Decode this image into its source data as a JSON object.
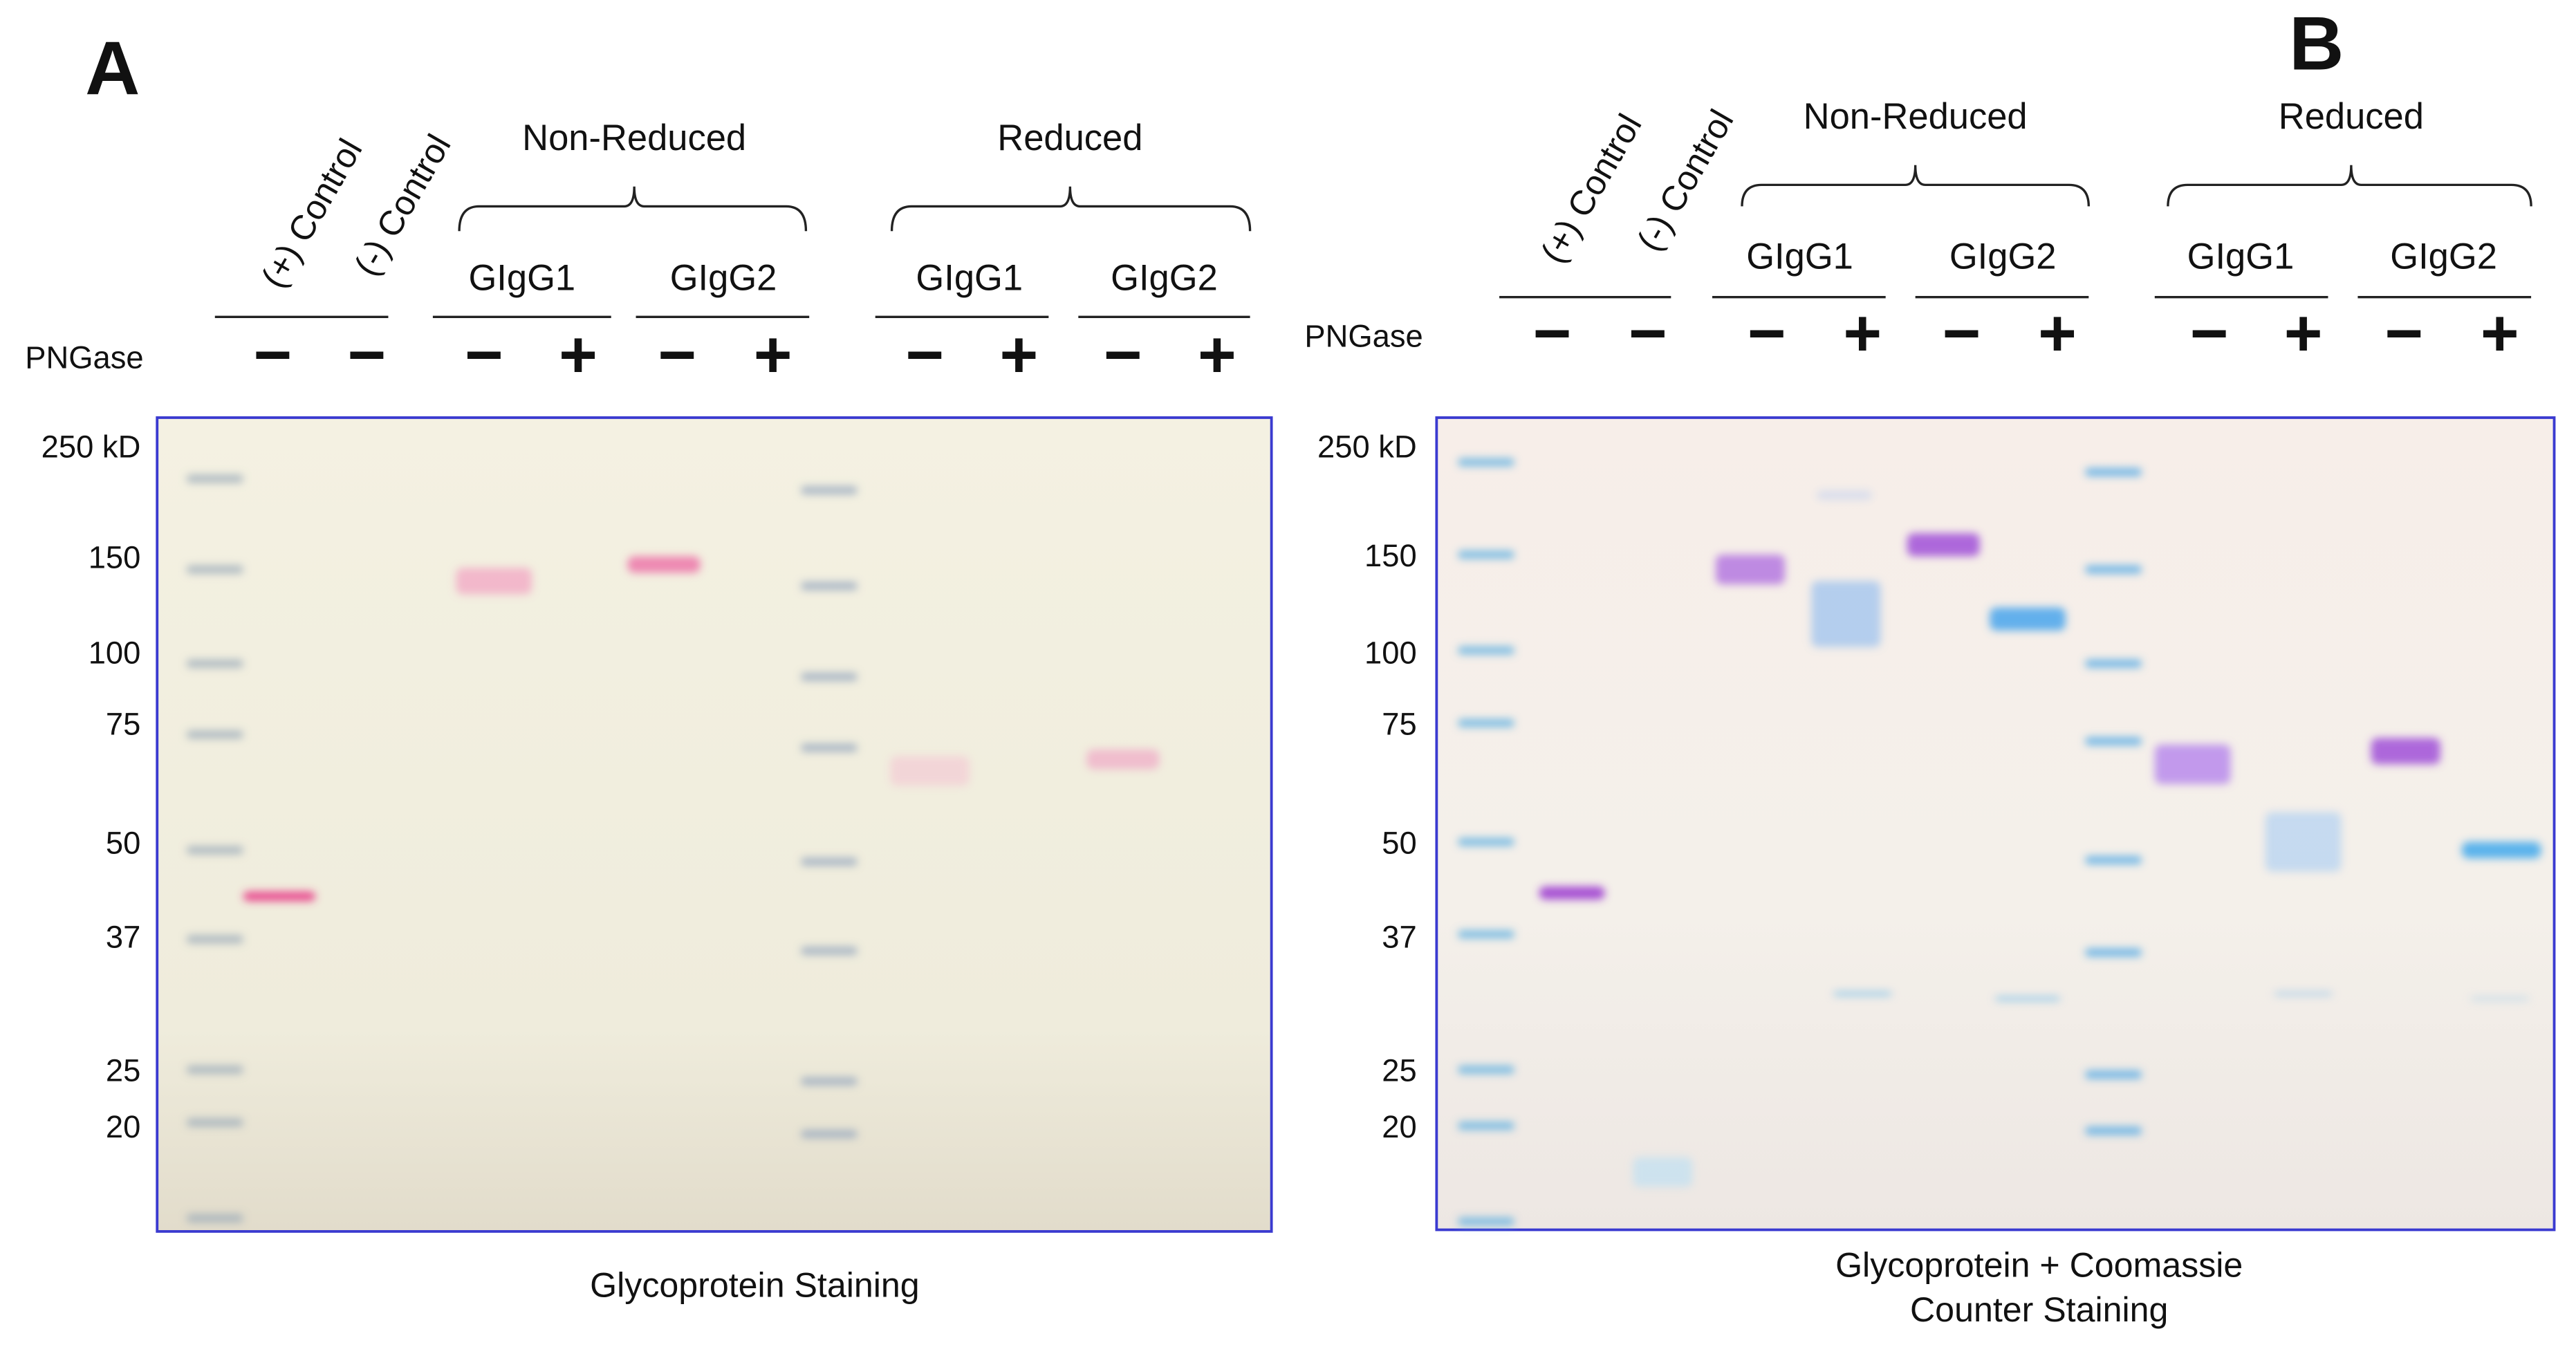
{
  "panels": [
    {
      "letter": "A",
      "pngase_label": "PNGase",
      "lanes": [
        "(+) Control",
        "(-) Control"
      ],
      "groups": [
        {
          "label": "Non-Reduced",
          "subgroups": [
            "GIgG1",
            "GIgG2"
          ]
        },
        {
          "label": "Reduced",
          "subgroups": [
            "GIgG1",
            "GIgG2"
          ]
        }
      ],
      "signs": [
        "−",
        "−",
        "−",
        "+",
        "−",
        "+",
        "−",
        "+",
        "−",
        "+"
      ],
      "markers": [
        "250 kD",
        "150",
        "100",
        "75",
        "50",
        "37",
        "25",
        "20"
      ],
      "caption": [
        "Glycoprotein  Staining"
      ]
    },
    {
      "letter": "B",
      "pngase_label": "PNGase",
      "lanes": [
        "(+) Control",
        "(-) Control"
      ],
      "groups": [
        {
          "label": "Non-Reduced",
          "subgroups": [
            "GIgG1",
            "GIgG2"
          ]
        },
        {
          "label": "Reduced",
          "subgroups": [
            "GIgG1",
            "GIgG2"
          ]
        }
      ],
      "signs": [
        "−",
        "−",
        "−",
        "+",
        "−",
        "+",
        "−",
        "+",
        "−",
        "+"
      ],
      "markers": [
        "250 kD",
        "150",
        "100",
        "75",
        "50",
        "37",
        "25",
        "20"
      ],
      "caption": [
        "Glycoprotein + Coomassie",
        "Counter  Staining"
      ]
    }
  ]
}
